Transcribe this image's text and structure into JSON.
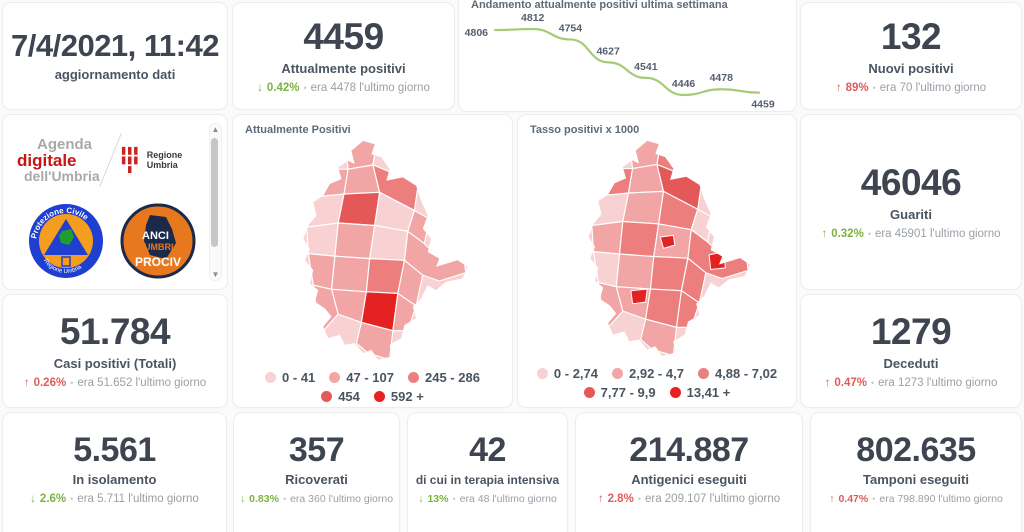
{
  "ui": {
    "separator": "•"
  },
  "colors": {
    "trend_green": "#7cb342",
    "trend_red": "#e05b5b",
    "number_dark": "#3e4450",
    "muted_text": "#9aa0a6",
    "line_green": "#a6ca76",
    "choropleth_palette": [
      "#f8d2d2",
      "#f2a5a5",
      "#ec7e7e",
      "#e45858",
      "#e42222"
    ]
  },
  "kpis": {
    "updated": {
      "value": "7/4/2021, 11:42",
      "label": "aggiornamento dati"
    },
    "attualmente_positivi": {
      "value": "4459",
      "label": "Attualmente positivi",
      "arrow": "↓",
      "delta": "0.42%",
      "trend": "green",
      "prev": "era 4478  l'ultimo giorno"
    },
    "nuovi_positivi": {
      "value": "132",
      "label": "Nuovi positivi",
      "arrow": "↑",
      "delta": "89%",
      "trend": "red",
      "prev": "era 70  l'ultimo giorno"
    },
    "guariti": {
      "value": "46046",
      "label": "Guariti",
      "arrow": "↑",
      "delta": "0.32%",
      "trend": "green",
      "prev": "era 45901  l'ultimo giorno"
    },
    "casi_totali": {
      "value": "51.784",
      "label": "Casi positivi (Totali)",
      "arrow": "↑",
      "delta": "0.26%",
      "trend": "red",
      "prev": "era 51.652  l'ultimo giorno"
    },
    "deceduti": {
      "value": "1279",
      "label": "Deceduti",
      "arrow": "↑",
      "delta": "0.47%",
      "trend": "red",
      "prev": "era 1273  l'ultimo giorno"
    },
    "isolamento": {
      "value": "5.561",
      "label": "In isolamento",
      "arrow": "↓",
      "delta": "2.6%",
      "trend": "green",
      "prev": "era 5.711  l'ultimo giorno"
    },
    "ricoverati": {
      "value": "357",
      "label": "Ricoverati",
      "arrow": "↓",
      "delta": "0.83%",
      "trend": "green",
      "prev": "era 360  l'ultimo giorno"
    },
    "terapia_intensiva": {
      "value": "42",
      "label": "di cui in terapia intensiva",
      "arrow": "↓",
      "delta": "13%",
      "trend": "green",
      "prev": "era 48  l'ultimo giorno"
    },
    "antigenici": {
      "value": "214.887",
      "label": "Antigenici eseguiti",
      "arrow": "↑",
      "delta": "2.8%",
      "trend": "red",
      "prev": "era 209.107  l'ultimo giorno"
    },
    "tamponi": {
      "value": "802.635",
      "label": "Tamponi eseguiti",
      "arrow": "↑",
      "delta": "0.47%",
      "trend": "red",
      "prev": "era 798.890  l'ultimo giorno"
    }
  },
  "chart_data": [
    {
      "type": "line",
      "title": "Andamento attualmente positivi ultima settimana",
      "series": [
        {
          "name": "attualmente positivi",
          "values": [
            4806,
            4812,
            4754,
            4627,
            4541,
            4446,
            4478,
            4459
          ]
        }
      ],
      "point_labels": true,
      "x_axis_shown": false,
      "ylim": [
        4440,
        4815
      ],
      "line_color": "#a6ca76"
    },
    {
      "type": "choropleth",
      "title": "Attualmente Positivi",
      "region": "Umbria",
      "legend": [
        {
          "label": "0 - 41",
          "color": "#f8d2d2"
        },
        {
          "label": "47 - 107",
          "color": "#f2a5a5"
        },
        {
          "label": "245 - 286",
          "color": "#ec7e7e"
        },
        {
          "label": "454",
          "color": "#e45858"
        },
        {
          "label": "592 +",
          "color": "#e42222"
        }
      ]
    },
    {
      "type": "choropleth",
      "title": "Tasso positivi x 1000",
      "region": "Umbria",
      "legend": [
        {
          "label": "0 - 2,74",
          "color": "#f8d2d2"
        },
        {
          "label": "2,92 - 4,7",
          "color": "#f2a5a5"
        },
        {
          "label": "4,88 - 7,02",
          "color": "#ec7e7e"
        },
        {
          "label": "7,77 - 9,9",
          "color": "#e45858"
        },
        {
          "label": "13,41 +",
          "color": "#e42222"
        }
      ]
    }
  ],
  "logos": {
    "agenda_line1": "Agenda",
    "agenda_line2": "digitale",
    "agenda_line3": "dell'Umbria",
    "regione_label": "Regione Umbria",
    "protezione_top": "Protezione Civile",
    "protezione_bottom": "Regione Umbria",
    "anci_line1": "ANCI",
    "anci_line2": "UMBRIA",
    "anci_line3": "PROCIV"
  }
}
